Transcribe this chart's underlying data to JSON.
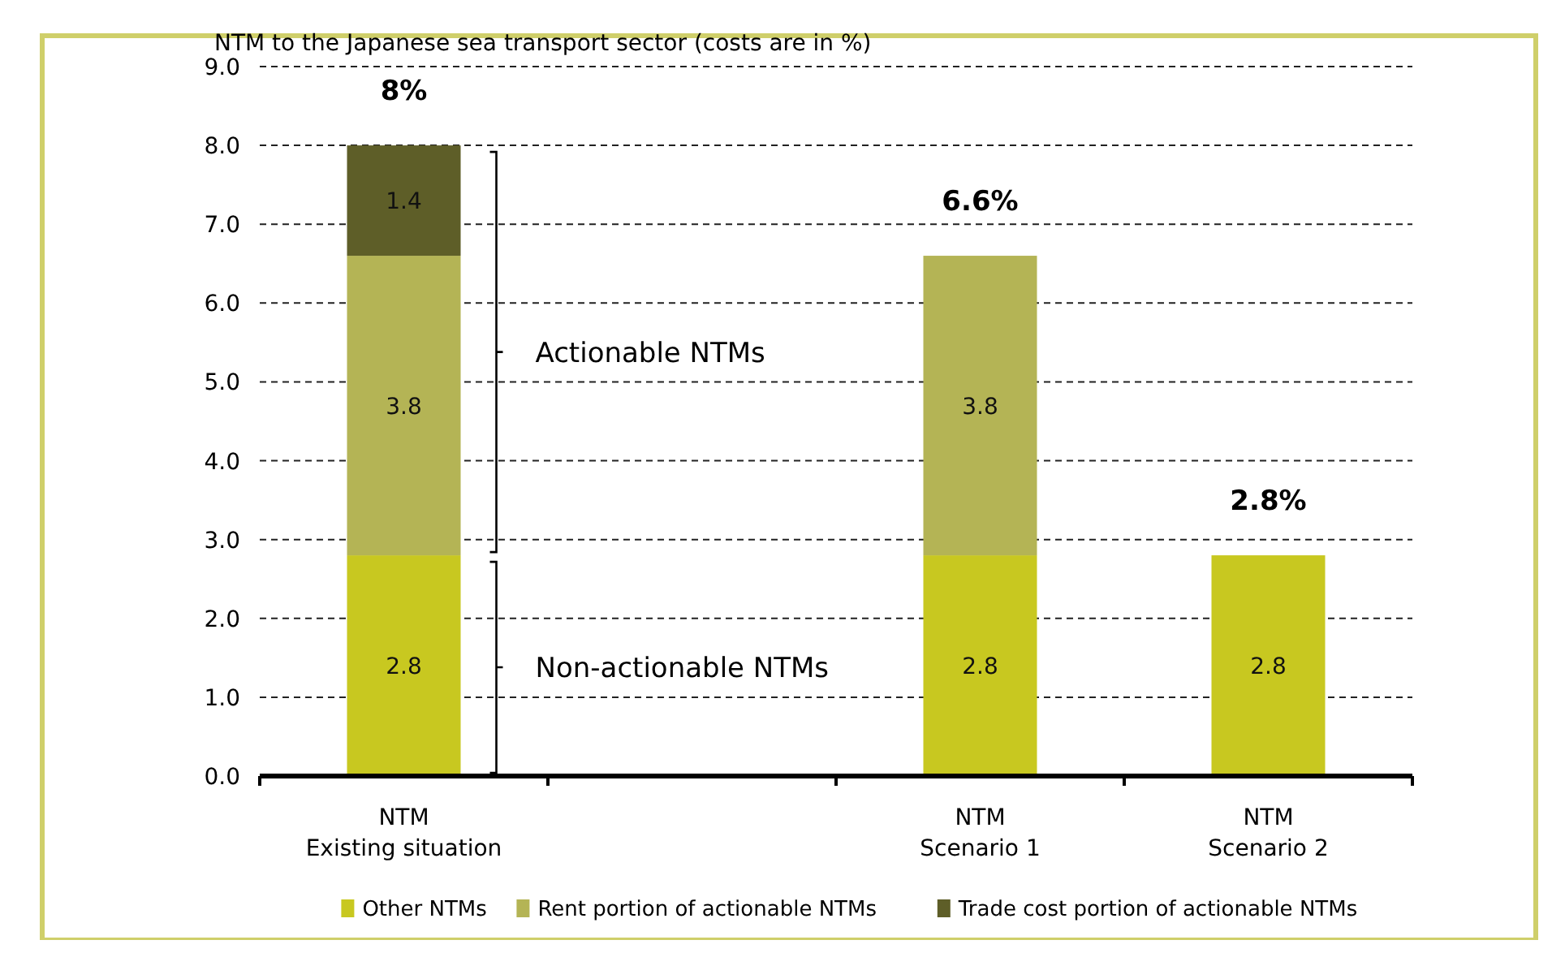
{
  "chart_data": {
    "type": "bar",
    "stacked": true,
    "ylabel": "NTM to the Japanese sea transport sector (costs are in %)",
    "categories": [
      "NTM\nExisting situation",
      null,
      "NTM\nScenario 1",
      "NTM\nScenario 2"
    ],
    "series": [
      {
        "name": "Other NTMs",
        "color": "#c8c820",
        "values": [
          2.8,
          null,
          2.8,
          2.8
        ]
      },
      {
        "name": "Rent portion of actionable NTMs",
        "color": "#b4b455",
        "values": [
          3.8,
          null,
          3.8,
          null
        ]
      },
      {
        "name": "Trade cost portion of actionable NTMs",
        "color": "#5e5e28",
        "values": [
          1.4,
          null,
          null,
          null
        ]
      }
    ],
    "ylim": [
      0,
      9
    ],
    "yticks": [
      {
        "value": 0,
        "label": "0.0"
      },
      {
        "value": 1,
        "label": "1.0"
      },
      {
        "value": 2,
        "label": "2.0"
      },
      {
        "value": 3,
        "label": "3.0"
      },
      {
        "value": 4,
        "label": "4.0"
      },
      {
        "value": 5,
        "label": "5.0"
      },
      {
        "value": 6,
        "label": "6.0"
      },
      {
        "value": 7,
        "label": "7.0"
      },
      {
        "value": 8,
        "label": "8.0"
      },
      {
        "value": 9,
        "label": "9.0"
      }
    ],
    "grid": "y",
    "data_labels": true,
    "totals": [
      "8%",
      null,
      "6.6%",
      "2.8%"
    ],
    "annotations": [
      "Actionable NTMs",
      "Non-actionable NTMs"
    ],
    "legend": "bottom"
  }
}
